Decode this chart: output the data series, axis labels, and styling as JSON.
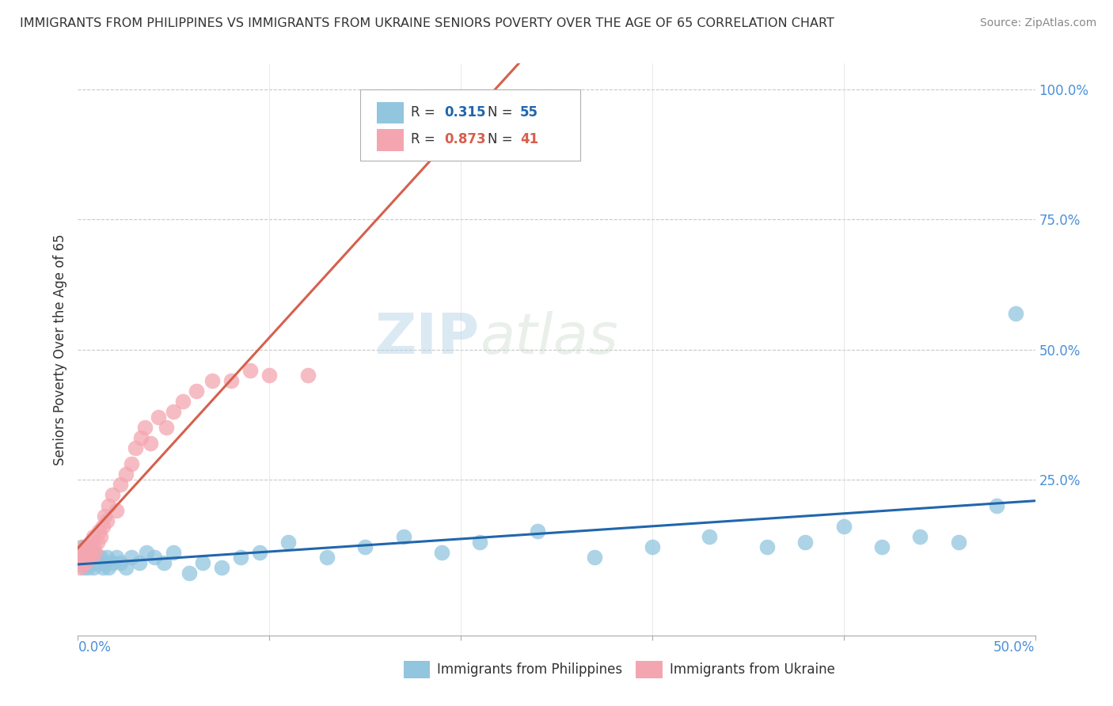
{
  "title": "IMMIGRANTS FROM PHILIPPINES VS IMMIGRANTS FROM UKRAINE SENIORS POVERTY OVER THE AGE OF 65 CORRELATION CHART",
  "source": "Source: ZipAtlas.com",
  "ylabel": "Seniors Poverty Over the Age of 65",
  "xlim": [
    0.0,
    0.5
  ],
  "ylim": [
    -0.05,
    1.05
  ],
  "legend_r1": "R = 0.315",
  "legend_n1": "N = 55",
  "legend_r2": "R = 0.873",
  "legend_n2": "N = 41",
  "color_philippines": "#92c5de",
  "color_ukraine": "#f4a6b0",
  "color_philippines_line": "#2166ac",
  "color_ukraine_line": "#d6604d",
  "watermark_zip": "ZIP",
  "watermark_atlas": "atlas",
  "background_color": "#ffffff",
  "grid_color": "#c8c8c8",
  "title_color": "#333333",
  "tick_label_color": "#4a90d9",
  "philippines_x": [
    0.001,
    0.002,
    0.002,
    0.003,
    0.003,
    0.004,
    0.004,
    0.005,
    0.005,
    0.006,
    0.006,
    0.007,
    0.007,
    0.008,
    0.009,
    0.01,
    0.011,
    0.012,
    0.013,
    0.014,
    0.015,
    0.016,
    0.018,
    0.02,
    0.022,
    0.025,
    0.028,
    0.032,
    0.036,
    0.04,
    0.045,
    0.05,
    0.058,
    0.065,
    0.075,
    0.085,
    0.095,
    0.11,
    0.13,
    0.15,
    0.17,
    0.19,
    0.21,
    0.24,
    0.27,
    0.3,
    0.33,
    0.36,
    0.38,
    0.4,
    0.42,
    0.44,
    0.46,
    0.48,
    0.49
  ],
  "philippines_y": [
    0.09,
    0.1,
    0.12,
    0.08,
    0.11,
    0.09,
    0.12,
    0.08,
    0.1,
    0.11,
    0.09,
    0.1,
    0.11,
    0.08,
    0.09,
    0.1,
    0.09,
    0.1,
    0.08,
    0.09,
    0.1,
    0.08,
    0.09,
    0.1,
    0.09,
    0.08,
    0.1,
    0.09,
    0.11,
    0.1,
    0.09,
    0.11,
    0.07,
    0.09,
    0.08,
    0.1,
    0.11,
    0.13,
    0.1,
    0.12,
    0.14,
    0.11,
    0.13,
    0.15,
    0.1,
    0.12,
    0.14,
    0.12,
    0.13,
    0.16,
    0.12,
    0.14,
    0.13,
    0.2,
    0.57
  ],
  "ukraine_x": [
    0.001,
    0.002,
    0.002,
    0.003,
    0.003,
    0.004,
    0.004,
    0.005,
    0.005,
    0.006,
    0.007,
    0.007,
    0.008,
    0.008,
    0.009,
    0.01,
    0.011,
    0.012,
    0.013,
    0.014,
    0.015,
    0.016,
    0.018,
    0.02,
    0.022,
    0.025,
    0.028,
    0.03,
    0.033,
    0.035,
    0.038,
    0.042,
    0.046,
    0.05,
    0.055,
    0.062,
    0.07,
    0.08,
    0.09,
    0.1,
    0.12
  ],
  "ukraine_y": [
    0.08,
    0.09,
    0.1,
    0.1,
    0.12,
    0.09,
    0.11,
    0.1,
    0.12,
    0.11,
    0.13,
    0.1,
    0.12,
    0.14,
    0.11,
    0.13,
    0.15,
    0.14,
    0.16,
    0.18,
    0.17,
    0.2,
    0.22,
    0.19,
    0.24,
    0.26,
    0.28,
    0.31,
    0.33,
    0.35,
    0.32,
    0.37,
    0.35,
    0.38,
    0.4,
    0.42,
    0.44,
    0.44,
    0.46,
    0.45,
    0.45
  ],
  "ytick_values": [
    0.25,
    0.5,
    0.75,
    1.0
  ],
  "ytick_labels": [
    "25.0%",
    "50.0%",
    "75.0%",
    "100.0%"
  ]
}
